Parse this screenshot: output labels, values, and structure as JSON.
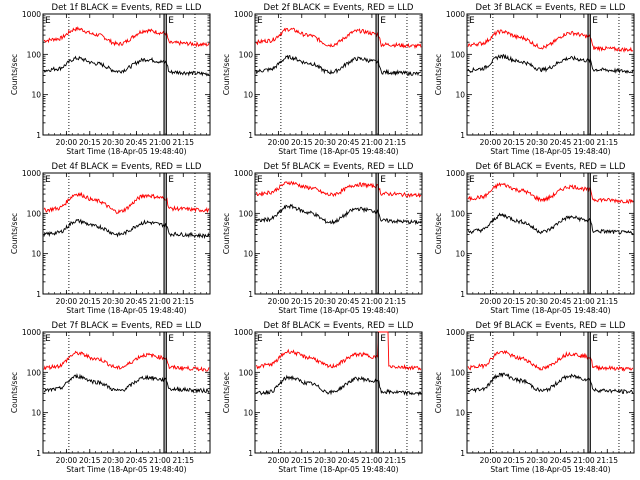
{
  "chart_data": [
    {
      "type": "line",
      "title": "Det 1f BLACK = Events, RED = LLD",
      "ylabel": "Counts/sec",
      "xlabel": "Start Time (18-Apr-05 19:48:40)",
      "y_scale": "log",
      "ylim": [
        1,
        1000
      ],
      "x_ticks": [
        "20:00",
        "20:15",
        "20:30",
        "20:45",
        "21:00",
        "21:15"
      ],
      "y_ticks": [
        "1",
        "10",
        "100",
        "1000"
      ],
      "marker_label": "E",
      "grid": false,
      "series": [
        {
          "name": "RED = LLD",
          "color": "#ff0000",
          "base": 220,
          "peak1": 430,
          "trough": 180,
          "peak2": 390,
          "end": 175
        },
        {
          "name": "BLACK = Events",
          "color": "#000000",
          "base": 40,
          "peak1": 80,
          "trough": 38,
          "peak2": 75,
          "end": 33
        }
      ]
    },
    {
      "type": "line",
      "title": "Det 2f BLACK = Events, RED = LLD",
      "ylabel": "Counts/sec",
      "xlabel": "Start Time (18-Apr-05 19:48:40)",
      "y_scale": "log",
      "ylim": [
        1,
        1000
      ],
      "x_ticks": [
        "20:00",
        "20:15",
        "20:30",
        "20:45",
        "21:00",
        "21:15"
      ],
      "y_ticks": [
        "1",
        "10",
        "100",
        "1000"
      ],
      "marker_label": "E",
      "grid": false,
      "series": [
        {
          "name": "RED = LLD",
          "color": "#ff0000",
          "base": 200,
          "peak1": 420,
          "trough": 170,
          "peak2": 380,
          "end": 160
        },
        {
          "name": "BLACK = Events",
          "color": "#000000",
          "base": 38,
          "peak1": 85,
          "trough": 36,
          "peak2": 78,
          "end": 33
        }
      ]
    },
    {
      "type": "line",
      "title": "Det 3f BLACK = Events, RED = LLD",
      "ylabel": "Counts/sec",
      "xlabel": "Start Time (18-Apr-05 19:48:40)",
      "y_scale": "log",
      "ylim": [
        1,
        1000
      ],
      "x_ticks": [
        "20:00",
        "20:15",
        "20:30",
        "20:45",
        "21:00",
        "21:15"
      ],
      "y_ticks": [
        "1",
        "10",
        "100",
        "1000"
      ],
      "marker_label": "E",
      "grid": false,
      "series": [
        {
          "name": "RED = LLD",
          "color": "#ff0000",
          "base": 170,
          "peak1": 370,
          "trough": 150,
          "peak2": 340,
          "end": 130
        },
        {
          "name": "BLACK = Events",
          "color": "#000000",
          "base": 40,
          "peak1": 90,
          "trough": 42,
          "peak2": 80,
          "end": 38
        }
      ]
    },
    {
      "type": "line",
      "title": "Det 4f BLACK = Events, RED = LLD",
      "ylabel": "Counts/sec",
      "xlabel": "Start Time (18-Apr-05 19:48:40)",
      "y_scale": "log",
      "ylim": [
        1,
        1000
      ],
      "x_ticks": [
        "20:00",
        "20:15",
        "20:30",
        "20:45",
        "21:00",
        "21:15"
      ],
      "y_ticks": [
        "1",
        "10",
        "100",
        "1000"
      ],
      "marker_label": "E",
      "grid": false,
      "series": [
        {
          "name": "RED = LLD",
          "color": "#ff0000",
          "base": 120,
          "peak1": 300,
          "trough": 110,
          "peak2": 280,
          "end": 120
        },
        {
          "name": "BLACK = Events",
          "color": "#000000",
          "base": 30,
          "peak1": 65,
          "trough": 30,
          "peak2": 60,
          "end": 28
        }
      ]
    },
    {
      "type": "line",
      "title": "Det 5f BLACK = Events, RED = LLD",
      "ylabel": "Counts/sec",
      "xlabel": "Start Time (18-Apr-05 19:48:40)",
      "y_scale": "log",
      "ylim": [
        1,
        1000
      ],
      "x_ticks": [
        "20:00",
        "20:15",
        "20:30",
        "20:45",
        "21:00",
        "21:15"
      ],
      "y_ticks": [
        "1",
        "10",
        "100",
        "1000"
      ],
      "marker_label": "E",
      "grid": false,
      "series": [
        {
          "name": "RED = LLD",
          "color": "#ff0000",
          "base": 300,
          "peak1": 580,
          "trough": 290,
          "peak2": 520,
          "end": 280
        },
        {
          "name": "BLACK = Events",
          "color": "#000000",
          "base": 65,
          "peak1": 150,
          "trough": 60,
          "peak2": 130,
          "end": 60
        }
      ]
    },
    {
      "type": "line",
      "title": "Det 6f BLACK = Events, RED = LLD",
      "ylabel": "Counts/sec",
      "xlabel": "Start Time (18-Apr-05 19:48:40)",
      "y_scale": "log",
      "ylim": [
        1,
        1000
      ],
      "x_ticks": [
        "20:00",
        "20:15",
        "20:30",
        "20:45",
        "21:00",
        "21:15"
      ],
      "y_ticks": [
        "1",
        "10",
        "100",
        "1000"
      ],
      "marker_label": "E",
      "grid": false,
      "series": [
        {
          "name": "RED = LLD",
          "color": "#ff0000",
          "base": 230,
          "peak1": 520,
          "trough": 220,
          "peak2": 460,
          "end": 200
        },
        {
          "name": "BLACK = Events",
          "color": "#000000",
          "base": 35,
          "peak1": 90,
          "trough": 35,
          "peak2": 80,
          "end": 33
        }
      ]
    },
    {
      "type": "line",
      "title": "Det 7f BLACK = Events, RED = LLD",
      "ylabel": "Counts/sec",
      "xlabel": "Start Time (18-Apr-05 19:48:40)",
      "y_scale": "log",
      "ylim": [
        1,
        1000
      ],
      "x_ticks": [
        "20:00",
        "20:15",
        "20:30",
        "20:45",
        "21:00",
        "21:15"
      ],
      "y_ticks": [
        "1",
        "10",
        "100",
        "1000"
      ],
      "marker_label": "E",
      "grid": false,
      "series": [
        {
          "name": "RED = LLD",
          "color": "#ff0000",
          "base": 130,
          "peak1": 300,
          "trough": 130,
          "peak2": 270,
          "end": 120
        },
        {
          "name": "BLACK = Events",
          "color": "#000000",
          "base": 35,
          "peak1": 80,
          "trough": 35,
          "peak2": 75,
          "end": 35
        }
      ]
    },
    {
      "type": "line",
      "title": "Det 8f BLACK = Events, RED = LLD",
      "ylabel": "Counts/sec",
      "xlabel": "Start Time (18-Apr-05 19:48:40)",
      "y_scale": "log",
      "ylim": [
        1,
        1000
      ],
      "x_ticks": [
        "20:00",
        "20:15",
        "20:30",
        "20:45",
        "21:00",
        "21:15"
      ],
      "y_ticks": [
        "1",
        "10",
        "100",
        "1000"
      ],
      "marker_label": "E",
      "grid": false,
      "series": [
        {
          "name": "RED = LLD",
          "color": "#ff0000",
          "base": 140,
          "peak1": 330,
          "trough": 140,
          "peak2": 280,
          "end": 130,
          "spike_start": 0.74,
          "spike_end": 0.8,
          "spike_value": 1000
        },
        {
          "name": "BLACK = Events",
          "color": "#000000",
          "base": 30,
          "peak1": 75,
          "trough": 32,
          "peak2": 70,
          "end": 30
        }
      ]
    },
    {
      "type": "line",
      "title": "Det 9f BLACK = Events, RED = LLD",
      "ylabel": "Counts/sec",
      "xlabel": "Start Time (18-Apr-05 19:48:40)",
      "y_scale": "log",
      "ylim": [
        1,
        1000
      ],
      "x_ticks": [
        "20:00",
        "20:15",
        "20:30",
        "20:45",
        "21:00",
        "21:15"
      ],
      "y_ticks": [
        "1",
        "10",
        "100",
        "1000"
      ],
      "marker_label": "E",
      "grid": false,
      "series": [
        {
          "name": "RED = LLD",
          "color": "#ff0000",
          "base": 130,
          "peak1": 320,
          "trough": 125,
          "peak2": 290,
          "end": 120
        },
        {
          "name": "BLACK = Events",
          "color": "#000000",
          "base": 35,
          "peak1": 90,
          "trough": 35,
          "peak2": 80,
          "end": 33
        }
      ]
    }
  ]
}
